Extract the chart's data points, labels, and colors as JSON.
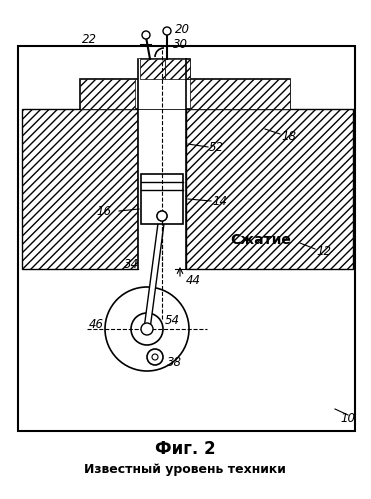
{
  "title": "Фиг. 2",
  "subtitle": "Известный уровень техники",
  "label_compression": "Сжатие",
  "label_10": "10",
  "label_12": "12",
  "label_14": "14",
  "label_16": "16",
  "label_18": "18",
  "label_20": "20",
  "label_22": "22",
  "label_30": "30",
  "label_34": "34",
  "label_38": "38",
  "label_44": "44",
  "label_46": "46",
  "label_52": "52",
  "label_54": "54",
  "bg_color": "#ffffff",
  "line_color": "#000000",
  "fig_width": 3.71,
  "fig_height": 4.99
}
